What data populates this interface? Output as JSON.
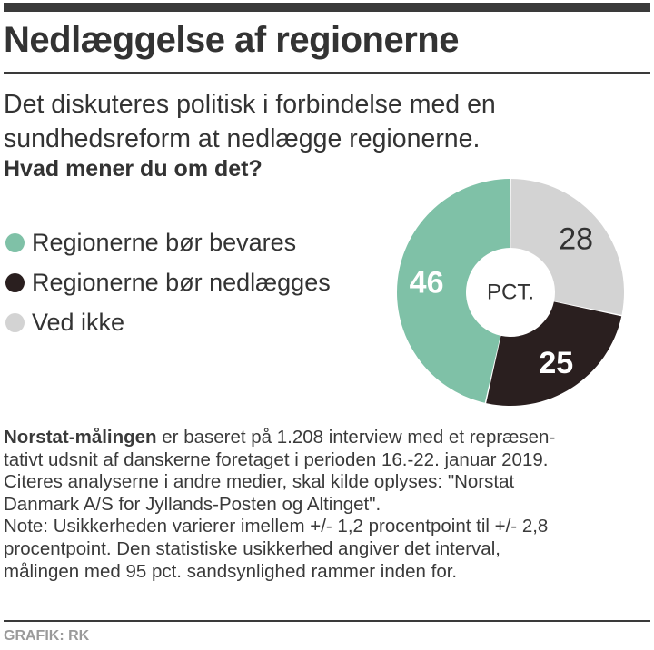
{
  "header": {
    "title": "Nedlæggelse af regionerne"
  },
  "question": {
    "text": "Det diskuteres politisk i forbindelse med en sundhedsreform at nedlægge regionerne.",
    "bold": "Hvad mener du om det?"
  },
  "legend": {
    "items": [
      {
        "label": "Regionerne bør bevares",
        "color": "#7fc1a7"
      },
      {
        "label": "Regionerne bør nedlægges",
        "color": "#2a1f1f"
      },
      {
        "label": "Ved ikke",
        "color": "#d3d3d3"
      }
    ]
  },
  "chart_data": {
    "type": "pie",
    "variant": "donut",
    "center_label": "PCT.",
    "categories": [
      "Regionerne bør bevares",
      "Regionerne bør nedlægges",
      "Ved ikke"
    ],
    "values": [
      46,
      25,
      28
    ],
    "colors": [
      "#7fc1a7",
      "#2a1f1f",
      "#d3d3d3"
    ],
    "label_colors": [
      "#ffffff",
      "#ffffff",
      "#333333"
    ],
    "label_bold": [
      true,
      true,
      false
    ],
    "start": "top",
    "direction": "counterclockwise-from-right"
  },
  "note": {
    "lead": "Norstat-målingen",
    "lines": [
      " er baseret på 1.208 interview med et repræsen-",
      "tativt udsnit af danskerne foretaget i perioden 16.-22. januar 2019.",
      "Citeres analyserne i andre medier, skal kilde oplyses: \"Norstat",
      "Danmark A/S for Jyllands-Posten og Altinget\".",
      "Note: Usikkerheden varierer imellem +/- 1,2 procentpoint til +/- 2,8",
      "procentpoint. Den statistiske usikkerhed angiver det interval,",
      "målingen med 95 pct. sandsynlighed rammer inden for."
    ]
  },
  "footer": {
    "credit": "GRAFIK: RK"
  }
}
